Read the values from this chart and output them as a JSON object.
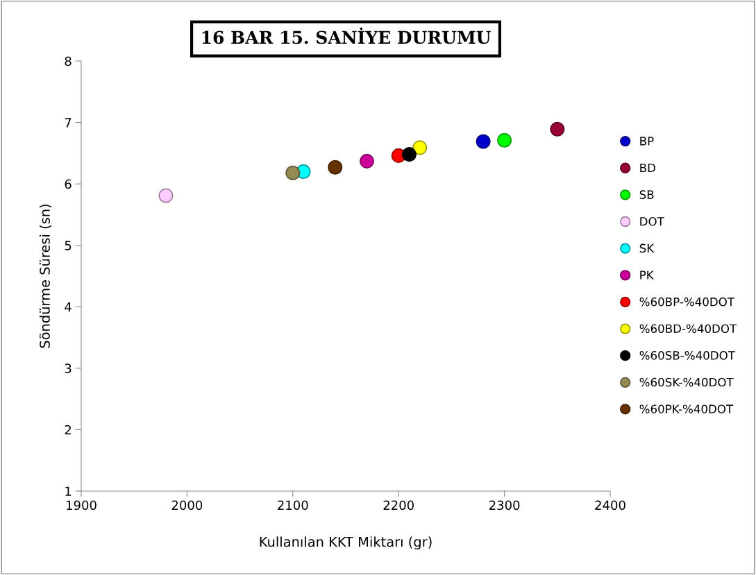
{
  "chart_data": {
    "type": "scatter",
    "title": "16 BAR 15. SANİYE DURUMU",
    "xlabel": "Kullanılan KKT Miktarı (gr)",
    "ylabel": "Söndürme Süresi (sn)",
    "xlim": [
      1900,
      2400
    ],
    "xticks": [
      1900,
      2000,
      2100,
      2200,
      2300,
      2400
    ],
    "ylim": [
      1,
      8
    ],
    "yticks": [
      1,
      2,
      3,
      4,
      5,
      6,
      7,
      8
    ],
    "grid": false,
    "legend": "right",
    "marker": "circle",
    "series": [
      {
        "name": "BP",
        "color": "#0000cc",
        "x": [
          2280
        ],
        "values": [
          6.69
        ]
      },
      {
        "name": "BD",
        "color": "#990033",
        "x": [
          2350
        ],
        "values": [
          6.89
        ]
      },
      {
        "name": "SB",
        "color": "#00ff00",
        "x": [
          2300
        ],
        "values": [
          6.71
        ]
      },
      {
        "name": "DOT",
        "color": "#ffccff",
        "x": [
          1980
        ],
        "values": [
          5.81
        ]
      },
      {
        "name": "SK",
        "color": "#00ffff",
        "x": [
          2110
        ],
        "values": [
          6.2
        ]
      },
      {
        "name": "PK",
        "color": "#cc0099",
        "x": [
          2170
        ],
        "values": [
          6.37
        ]
      },
      {
        "name": "%60BP-%40DOT",
        "color": "#ff0000",
        "x": [
          2200
        ],
        "values": [
          6.46
        ]
      },
      {
        "name": "%60BD-%40DOT",
        "color": "#ffff00",
        "x": [
          2220
        ],
        "values": [
          6.59
        ]
      },
      {
        "name": "%60SB-%40DOT",
        "color": "#000000",
        "x": [
          2210
        ],
        "values": [
          6.48
        ]
      },
      {
        "name": "%60SK-%40DOT",
        "color": "#948a54",
        "x": [
          2100
        ],
        "values": [
          6.18
        ]
      },
      {
        "name": "%60PK-%40DOT",
        "color": "#663300",
        "x": [
          2140
        ],
        "values": [
          6.27
        ]
      }
    ]
  }
}
